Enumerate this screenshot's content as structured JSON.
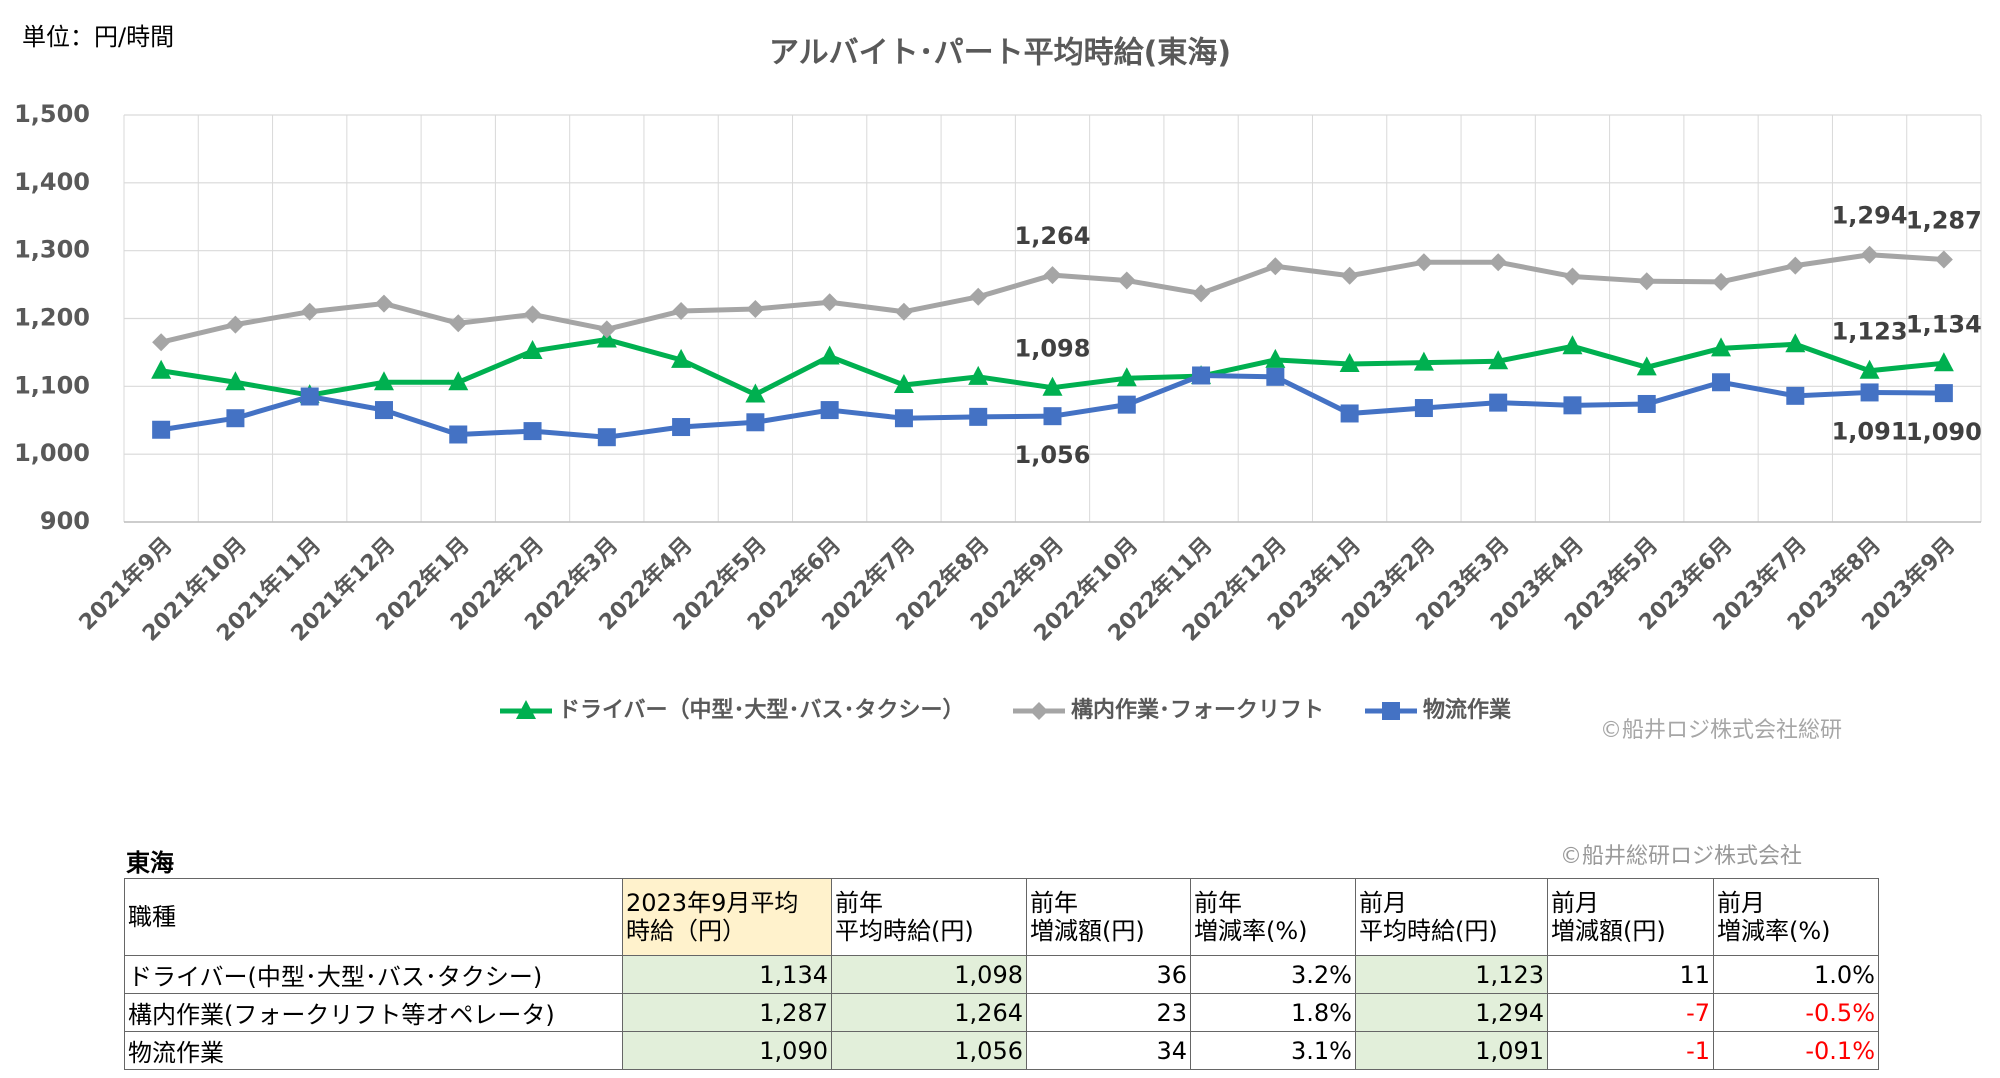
{
  "chart_data": {
    "type": "line",
    "title": "アルバイト･パート平均時給(東海)",
    "unit_label": "単位：円/時間",
    "credit": "©船井ロジ株式会社総研",
    "categories": [
      "2021年9月",
      "2021年10月",
      "2021年11月",
      "2021年12月",
      "2022年1月",
      "2022年2月",
      "2022年3月",
      "2022年4月",
      "2022年5月",
      "2022年6月",
      "2022年7月",
      "2022年8月",
      "2022年9月",
      "2022年10月",
      "2022年11月",
      "2022年12月",
      "2023年1月",
      "2023年2月",
      "2023年3月",
      "2023年4月",
      "2023年5月",
      "2023年6月",
      "2023年7月",
      "2023年8月",
      "2023年9月"
    ],
    "series": [
      {
        "name": "ドライバー（中型･大型･バス･タクシー）",
        "color": "#00b050",
        "marker": "triangle",
        "values": [
          1123,
          1106,
          1087,
          1106,
          1106,
          1152,
          1169,
          1139,
          1088,
          1144,
          1102,
          1114,
          1098,
          1112,
          1115,
          1139,
          1133,
          1135,
          1137,
          1159,
          1128,
          1156,
          1162,
          1123,
          1134
        ],
        "value_labels": [
          null,
          null,
          null,
          null,
          null,
          null,
          null,
          null,
          null,
          null,
          null,
          null,
          "1,098",
          null,
          null,
          null,
          null,
          null,
          null,
          null,
          null,
          null,
          null,
          "1,123",
          "1,134"
        ]
      },
      {
        "name": "構内作業･フォークリフト",
        "color": "#a5a5a5",
        "marker": "diamond",
        "values": [
          1165,
          1191,
          1210,
          1222,
          1193,
          1206,
          1184,
          1211,
          1214,
          1224,
          1210,
          1232,
          1264,
          1256,
          1237,
          1277,
          1263,
          1283,
          1283,
          1262,
          1255,
          1254,
          1278,
          1294,
          1287
        ],
        "value_labels": [
          null,
          null,
          null,
          null,
          null,
          null,
          null,
          null,
          null,
          null,
          null,
          null,
          "1,264",
          null,
          null,
          null,
          null,
          null,
          null,
          null,
          null,
          null,
          null,
          "1,294",
          "1,287"
        ]
      },
      {
        "name": "物流作業",
        "color": "#4472c4",
        "marker": "square",
        "values": [
          1036,
          1053,
          1085,
          1065,
          1029,
          1034,
          1025,
          1040,
          1047,
          1065,
          1053,
          1055,
          1056,
          1073,
          1116,
          1114,
          1060,
          1068,
          1076,
          1072,
          1074,
          1106,
          1086,
          1091,
          1090
        ],
        "value_labels": [
          null,
          null,
          null,
          null,
          null,
          null,
          null,
          null,
          null,
          null,
          null,
          null,
          "1,056",
          null,
          null,
          null,
          null,
          null,
          null,
          null,
          null,
          null,
          null,
          "1,091",
          "1,090"
        ]
      }
    ],
    "ylim": [
      900,
      1500
    ],
    "yticks": [
      900,
      {
        "value": 1000,
        "label": "1,000"
      },
      {
        "value": 1100,
        "label": "1,100"
      },
      {
        "value": 1200,
        "label": "1,200"
      },
      {
        "value": 1300,
        "label": "1,300"
      },
      {
        "value": 1400,
        "label": "1,400"
      },
      {
        "value": 1500,
        "label": "1,500"
      }
    ],
    "grid": true,
    "legend": "bottom"
  },
  "table": {
    "title": "東海",
    "credit": "©船井総研ロジ株式会社",
    "header": [
      [
        "職種"
      ],
      [
        "2023年9月平均",
        "時給（円）"
      ],
      [
        "前年",
        "平均時給(円)"
      ],
      [
        "前年",
        "増減額(円)"
      ],
      [
        "前年",
        "増減率(%)"
      ],
      [
        "前月",
        "平均時給(円)"
      ],
      [
        "前月",
        "増減額(円)"
      ],
      [
        "前月",
        "増減率(%)"
      ]
    ],
    "rows": [
      [
        "ドライバー(中型･大型･バス･タクシー)",
        "1,134",
        "1,098",
        "36",
        "3.2%",
        "1,123",
        "11",
        "1.0%"
      ],
      [
        "構内作業(フォークリフト等オペレータ)",
        "1,287",
        "1,264",
        "23",
        "1.8%",
        "1,294",
        "-7",
        "-0.5%"
      ],
      [
        "物流作業",
        "1,090",
        "1,056",
        "34",
        "3.1%",
        "1,091",
        "-1",
        "-0.1%"
      ]
    ]
  }
}
